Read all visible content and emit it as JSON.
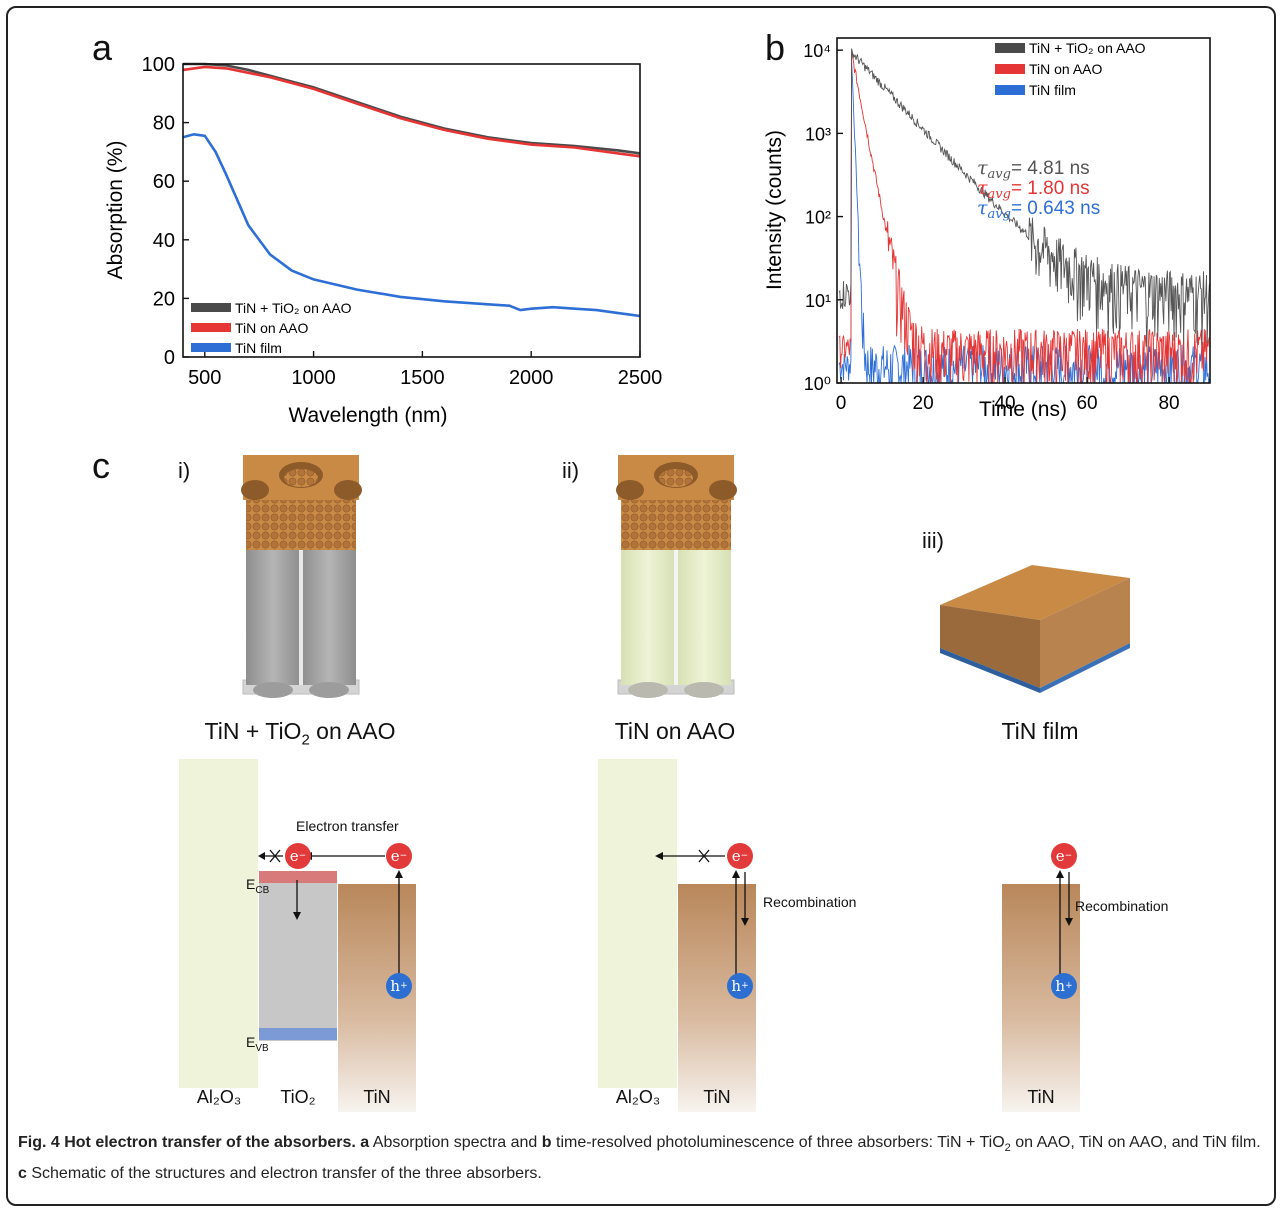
{
  "panels": {
    "a": "a",
    "b": "b",
    "c": "c"
  },
  "chart_data": [
    {
      "type": "line",
      "xlabel": "Wavelength (nm)",
      "ylabel": "Absorption (%)",
      "xlim": [
        400,
        2500
      ],
      "ylim": [
        0,
        100
      ],
      "xticks": [
        500,
        1000,
        1500,
        2000,
        2500
      ],
      "yticks": [
        0,
        20,
        40,
        60,
        80,
        100
      ],
      "legend_position": "bottom-left",
      "series": [
        {
          "name": "TiN + TiO₂ on AAO",
          "color": "#4a4a4a",
          "x": [
            400,
            500,
            600,
            700,
            800,
            900,
            1000,
            1200,
            1400,
            1600,
            1800,
            2000,
            2200,
            2400,
            2500
          ],
          "y": [
            100,
            100,
            99.5,
            98,
            96,
            94,
            92,
            87,
            82,
            78,
            75,
            73,
            72,
            70.5,
            69.5
          ]
        },
        {
          "name": "TiN on AAO",
          "color": "#e53535",
          "x": [
            400,
            500,
            600,
            700,
            800,
            900,
            1000,
            1200,
            1400,
            1600,
            1800,
            2000,
            2200,
            2400,
            2500
          ],
          "y": [
            98,
            99,
            98.5,
            97,
            95.5,
            93.5,
            91.5,
            86.5,
            81.5,
            77.5,
            74.5,
            72.5,
            71.5,
            69.5,
            68.5
          ]
        },
        {
          "name": "TiN film",
          "color": "#2e6fd6",
          "x": [
            400,
            450,
            500,
            550,
            600,
            700,
            800,
            900,
            1000,
            1200,
            1400,
            1600,
            1800,
            1900,
            1950,
            2000,
            2100,
            2200,
            2300,
            2400,
            2500
          ],
          "y": [
            75,
            76,
            75.5,
            70,
            62,
            45,
            35,
            29.5,
            26.5,
            23,
            20.5,
            19,
            18,
            17.5,
            16,
            16.5,
            17,
            16.5,
            16,
            15,
            14
          ]
        }
      ]
    },
    {
      "type": "line",
      "xlabel": "Time (ns)",
      "ylabel": "Intensity (counts)",
      "xlim": [
        -1,
        90
      ],
      "ylim": [
        1,
        14000
      ],
      "yscale": "log",
      "xticks": [
        0,
        20,
        40,
        60,
        80
      ],
      "yticks": [
        "10⁰",
        "10¹",
        "10²",
        "10³",
        "10⁴"
      ],
      "legend_position": "top-right",
      "annotations": [
        "τavg = 4.81 ns",
        "τavg = 1.80 ns",
        "τavg = 0.643 ns"
      ],
      "series": [
        {
          "name": "TiN + TiO₂ on AAO",
          "color": "#555555",
          "tau_ns": 4.81
        },
        {
          "name": "TiN on AAO",
          "color": "#e53535",
          "tau_ns": 1.8
        },
        {
          "name": "TiN film",
          "color": "#2e6fd6",
          "tau_ns": 0.643
        }
      ]
    }
  ],
  "chartA": {
    "xlabel": "Wavelength (nm)",
    "ylabel": "Absorption (%)",
    "xticks": [
      "500",
      "1000",
      "1500",
      "2000",
      "2500"
    ],
    "yticks": [
      "0",
      "20",
      "40",
      "60",
      "80",
      "100"
    ],
    "legend": [
      "TiN + TiO₂ on AAO",
      "TiN on AAO",
      "TiN film"
    ]
  },
  "chartB": {
    "xlabel": "Time (ns)",
    "ylabel": "Intensity (counts)",
    "xticks": [
      "0",
      "20",
      "40",
      "60",
      "80"
    ],
    "legend": [
      "TiN + TiO₂ on AAO",
      "TiN on AAO",
      "TiN film"
    ],
    "tau_symbol": "τ",
    "tau_sub": "avg",
    "tau_values": [
      "= 4.81 ns",
      "= 1.80 ns",
      "= 0.643 ns"
    ]
  },
  "schematic": {
    "labels": [
      "i)",
      "ii)",
      "iii)"
    ],
    "title1_pre": "TiN + TiO",
    "title1_sub": "2",
    "title1_post": " on AAO",
    "title2": "TiN on AAO",
    "title3": "TiN film",
    "electron_transfer": "Electron transfer",
    "recombination": "Recombination",
    "ecb": "E",
    "ecb_sub": "CB",
    "evb": "E",
    "evb_sub": "VB",
    "e_symbol": "e",
    "h_symbol": "h",
    "materials1": [
      "Al₂O₃",
      "TiO₂",
      "TiN"
    ],
    "materials2": [
      "Al₂O₃",
      "TiN"
    ],
    "materials3": [
      "TiN"
    ]
  },
  "caption": {
    "bold": "Fig. 4 Hot electron transfer of the absorbers.",
    "a": "a",
    "t1": " Absorption spectra and ",
    "b": "b",
    "t2": " time-resolved photoluminescence of three absorbers: TiN + TiO",
    "sub": "2",
    "t3": " on AAO, TiN on AAO, and TiN film. ",
    "c": "c",
    "t4": " Schematic of the structures and electron transfer of the three absorbers."
  }
}
